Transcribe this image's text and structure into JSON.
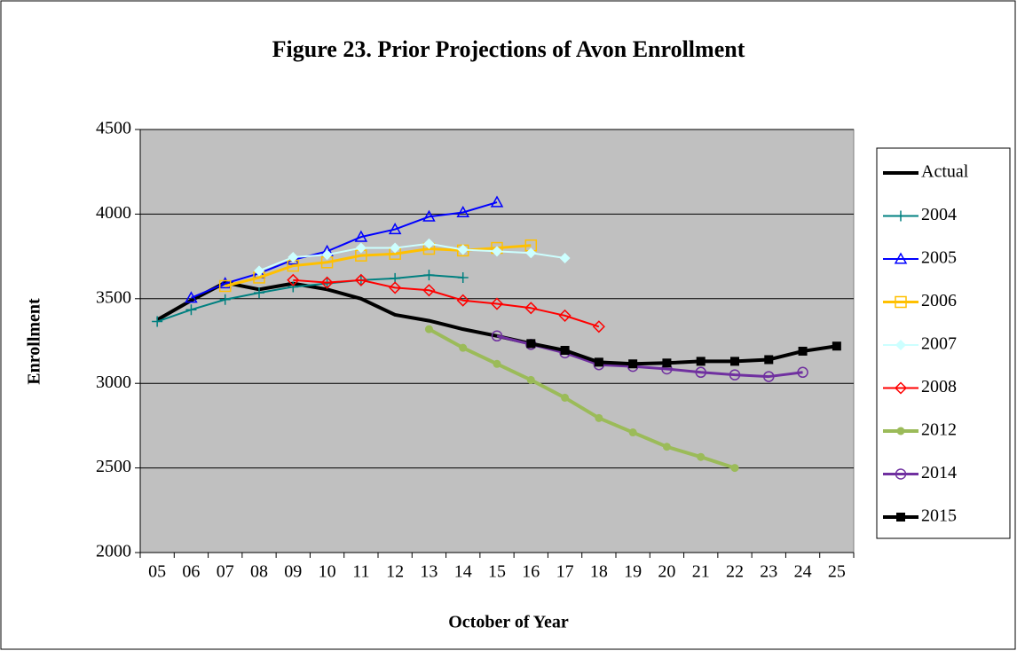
{
  "chart_data": {
    "type": "line",
    "title": "Figure 23. Prior Projections of Avon Enrollment",
    "x_label": "October of Year",
    "y_label": "Enrollment",
    "categories": [
      "05",
      "06",
      "07",
      "08",
      "09",
      "10",
      "11",
      "12",
      "13",
      "14",
      "15",
      "16",
      "17",
      "18",
      "19",
      "20",
      "21",
      "22",
      "23",
      "24",
      "25"
    ],
    "ylim": [
      2000,
      4500
    ],
    "yticks": [
      2000,
      2500,
      3000,
      3500,
      4000,
      4500
    ],
    "grid": true,
    "legend": "right",
    "series": [
      {
        "name": "Actual",
        "color": "#000000",
        "marker": "none",
        "width": 4,
        "values": [
          3375,
          3490,
          3595,
          3555,
          3590,
          3555,
          3500,
          3405,
          3370,
          3320,
          3280,
          3235,
          null,
          null,
          null,
          null,
          null,
          null,
          null,
          null,
          null
        ]
      },
      {
        "name": "2004",
        "color": "#008080",
        "marker": "plus",
        "width": 2,
        "values": [
          3365,
          3435,
          3495,
          3535,
          3570,
          3590,
          3610,
          3620,
          3640,
          3625,
          null,
          null,
          null,
          null,
          null,
          null,
          null,
          null,
          null,
          null,
          null
        ]
      },
      {
        "name": "2005",
        "color": "#0000ff",
        "marker": "triangle",
        "width": 2,
        "values": [
          null,
          3505,
          3590,
          3650,
          3730,
          3780,
          3865,
          3910,
          3985,
          4010,
          4070,
          null,
          null,
          null,
          null,
          null,
          null,
          null,
          null,
          null,
          null
        ]
      },
      {
        "name": "2006",
        "color": "#ffc000",
        "marker": "square",
        "width": 3,
        "values": [
          null,
          null,
          3575,
          3625,
          3695,
          3715,
          3755,
          3765,
          3795,
          3785,
          3800,
          3815,
          null,
          null,
          null,
          null,
          null,
          null,
          null,
          null,
          null
        ]
      },
      {
        "name": "2007",
        "color": "#ccffff",
        "marker": "diamond",
        "width": 2,
        "values": [
          null,
          null,
          null,
          3665,
          3745,
          3760,
          3800,
          3800,
          3825,
          3790,
          3780,
          3770,
          3740,
          null,
          null,
          null,
          null,
          null,
          null,
          null,
          null
        ]
      },
      {
        "name": "2008",
        "color": "#ff0000",
        "marker": "diamond-open",
        "width": 2,
        "values": [
          null,
          null,
          null,
          null,
          3610,
          3595,
          3610,
          3565,
          3550,
          3490,
          3470,
          3445,
          3400,
          3335,
          null,
          null,
          null,
          null,
          null,
          null,
          null
        ]
      },
      {
        "name": "2012",
        "color": "#9bbb59",
        "marker": "circle",
        "width": 4,
        "values": [
          null,
          null,
          null,
          null,
          null,
          null,
          null,
          null,
          3320,
          3210,
          3115,
          3020,
          2915,
          2795,
          2710,
          2625,
          2565,
          2500,
          null,
          null,
          null
        ]
      },
      {
        "name": "2014",
        "color": "#7030a0",
        "marker": "circle-open",
        "width": 3,
        "values": [
          null,
          null,
          null,
          null,
          null,
          null,
          null,
          null,
          null,
          null,
          3280,
          3230,
          3180,
          3110,
          3100,
          3085,
          3065,
          3050,
          3040,
          3065,
          null
        ]
      },
      {
        "name": "2015",
        "color": "#000000",
        "marker": "square-filled",
        "width": 4,
        "values": [
          null,
          null,
          null,
          null,
          null,
          null,
          null,
          null,
          null,
          null,
          null,
          3235,
          3195,
          3125,
          3115,
          3120,
          3130,
          3130,
          3140,
          3190,
          3220
        ]
      }
    ]
  }
}
